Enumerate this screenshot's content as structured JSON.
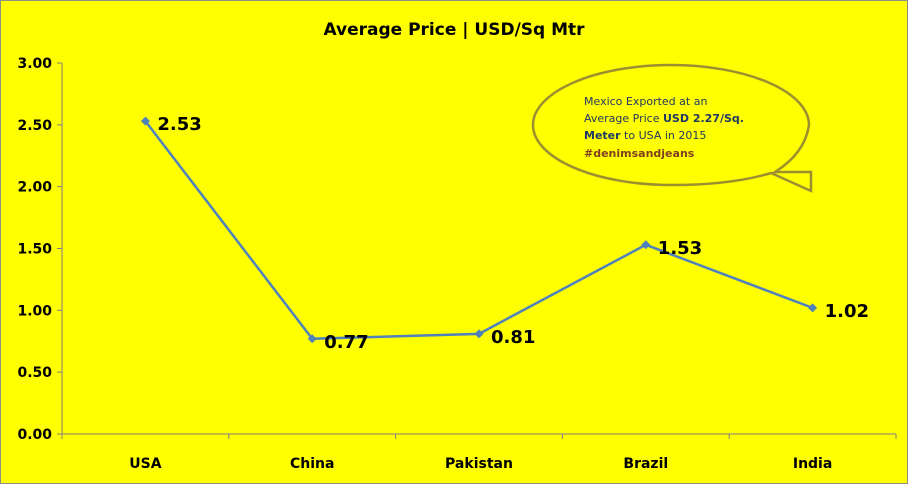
{
  "chart_data": {
    "type": "line",
    "title": "Average Price | USD/Sq Mtr",
    "categories": [
      "USA",
      "China",
      "Pakistan",
      "Brazil",
      "India"
    ],
    "values": [
      2.53,
      0.77,
      0.81,
      1.53,
      1.02
    ],
    "data_labels": [
      "2.53",
      "0.77",
      "0.81",
      "1.53",
      "1.02"
    ],
    "ylim": [
      0,
      3
    ],
    "yticks": [
      "0.00",
      "0.50",
      "1.00",
      "1.50",
      "2.00",
      "2.50",
      "3.00"
    ],
    "line_color": "#4f81bd",
    "background_color": "#ffff00",
    "grid": false,
    "legend": "none"
  },
  "callout": {
    "line1": "Mexico Exported at an",
    "line2_pre": "Average Price ",
    "line2_bold": "USD 2.27/Sq.",
    "line3_bold": "Meter",
    "line3_post": " to USA in  2015",
    "line4_tag": "#denimsandjeans",
    "border_color": "#9c8f30"
  }
}
